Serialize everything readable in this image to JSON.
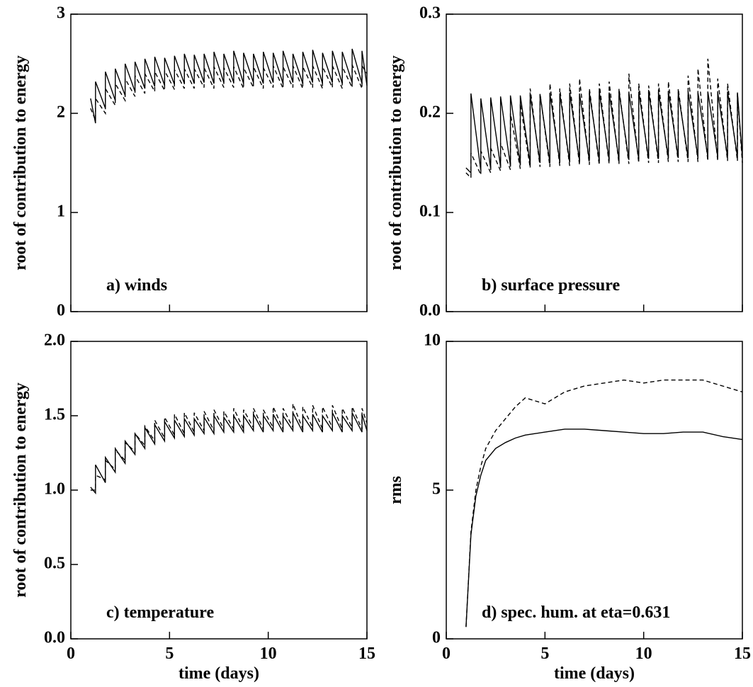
{
  "chart_data": [
    {
      "type": "line",
      "ylabel": "root of contribution to energy",
      "annotation": "a) winds",
      "xlim": [
        0,
        15
      ],
      "xticks": [
        0,
        5,
        10,
        15
      ],
      "show_xtick_labels": false,
      "ylim": [
        0,
        3
      ],
      "yticks": [
        0,
        1,
        2,
        3
      ],
      "x": [
        1,
        1.25,
        1.25,
        1.75,
        1.75,
        2.25,
        2.25,
        2.75,
        2.75,
        3.25,
        3.25,
        3.75,
        3.75,
        4.25,
        4.25,
        4.75,
        4.75,
        5.25,
        5.25,
        5.75,
        5.75,
        6.25,
        6.25,
        6.75,
        6.75,
        7.25,
        7.25,
        7.75,
        7.75,
        8.25,
        8.25,
        8.75,
        8.75,
        9.25,
        9.25,
        9.75,
        9.75,
        10.25,
        10.25,
        10.75,
        10.75,
        11.25,
        11.25,
        11.75,
        11.75,
        12.25,
        12.25,
        12.75,
        12.75,
        13.25,
        13.25,
        13.75,
        13.75,
        14.25,
        14.25,
        14.75,
        14.75,
        15
      ],
      "series": [
        {
          "color": "#000000",
          "line_style": "solid",
          "values": [
            2.15,
            1.9,
            2.32,
            2.05,
            2.42,
            2.13,
            2.45,
            2.18,
            2.5,
            2.22,
            2.52,
            2.25,
            2.55,
            2.27,
            2.57,
            2.28,
            2.56,
            2.29,
            2.58,
            2.3,
            2.6,
            2.3,
            2.59,
            2.31,
            2.6,
            2.3,
            2.62,
            2.31,
            2.6,
            2.31,
            2.63,
            2.3,
            2.61,
            2.31,
            2.6,
            2.3,
            2.62,
            2.31,
            2.61,
            2.3,
            2.63,
            2.31,
            2.6,
            2.3,
            2.62,
            2.31,
            2.64,
            2.3,
            2.61,
            2.31,
            2.63,
            2.3,
            2.62,
            2.31,
            2.65,
            2.3,
            2.63,
            2.28
          ]
        },
        {
          "color": "#000000",
          "line_style": "dashed",
          "values": [
            2.05,
            1.93,
            2.15,
            2.0,
            2.25,
            2.08,
            2.3,
            2.13,
            2.35,
            2.17,
            2.38,
            2.2,
            2.4,
            2.22,
            2.42,
            2.23,
            2.43,
            2.24,
            2.44,
            2.25,
            2.45,
            2.25,
            2.45,
            2.26,
            2.46,
            2.25,
            2.47,
            2.26,
            2.46,
            2.26,
            2.47,
            2.25,
            2.46,
            2.26,
            2.47,
            2.25,
            2.46,
            2.26,
            2.48,
            2.25,
            2.47,
            2.26,
            2.48,
            2.25,
            2.47,
            2.26,
            2.48,
            2.25,
            2.47,
            2.26,
            2.48,
            2.25,
            2.47,
            2.26,
            2.49,
            2.25,
            2.48,
            2.4
          ]
        }
      ]
    },
    {
      "type": "line",
      "ylabel": "root of contribution to energy",
      "annotation": "b) surface pressure",
      "xlim": [
        0,
        15
      ],
      "xticks": [
        0,
        5,
        10,
        15
      ],
      "show_xtick_labels": false,
      "ylim": [
        0,
        0.3
      ],
      "yticks": [
        {
          "value": 0,
          "label": "0.0"
        },
        0.1,
        0.2,
        0.3
      ],
      "x": [
        1,
        1.25,
        1.25,
        1.75,
        1.75,
        2.25,
        2.25,
        2.75,
        2.75,
        3.25,
        3.25,
        3.75,
        3.75,
        4.25,
        4.25,
        4.75,
        4.75,
        5.25,
        5.25,
        5.75,
        5.75,
        6.25,
        6.25,
        6.75,
        6.75,
        7.25,
        7.25,
        7.75,
        7.75,
        8.25,
        8.25,
        8.75,
        8.75,
        9.25,
        9.25,
        9.75,
        9.75,
        10.25,
        10.25,
        10.75,
        10.75,
        11.25,
        11.25,
        11.75,
        11.75,
        12.25,
        12.25,
        12.75,
        12.75,
        13.25,
        13.25,
        13.75,
        13.75,
        14.25,
        14.25,
        14.75,
        14.75,
        15
      ],
      "series": [
        {
          "color": "#000000",
          "line_style": "solid",
          "values": [
            0.145,
            0.14,
            0.22,
            0.142,
            0.215,
            0.144,
            0.216,
            0.146,
            0.217,
            0.147,
            0.218,
            0.148,
            0.218,
            0.149,
            0.219,
            0.15,
            0.219,
            0.15,
            0.22,
            0.151,
            0.22,
            0.151,
            0.221,
            0.152,
            0.22,
            0.152,
            0.221,
            0.152,
            0.222,
            0.153,
            0.221,
            0.153,
            0.222,
            0.153,
            0.221,
            0.154,
            0.222,
            0.154,
            0.222,
            0.154,
            0.221,
            0.155,
            0.222,
            0.155,
            0.221,
            0.155,
            0.222,
            0.155,
            0.221,
            0.156,
            0.222,
            0.156,
            0.221,
            0.156,
            0.222,
            0.156,
            0.221,
            0.155
          ]
        },
        {
          "color": "#000000",
          "line_style": "dashed",
          "values": [
            0.14,
            0.135,
            0.16,
            0.138,
            0.162,
            0.14,
            0.165,
            0.142,
            0.17,
            0.143,
            0.2,
            0.144,
            0.21,
            0.145,
            0.225,
            0.146,
            0.22,
            0.146,
            0.23,
            0.147,
            0.225,
            0.147,
            0.23,
            0.148,
            0.235,
            0.148,
            0.225,
            0.148,
            0.23,
            0.149,
            0.232,
            0.149,
            0.225,
            0.149,
            0.24,
            0.15,
            0.23,
            0.15,
            0.228,
            0.15,
            0.23,
            0.151,
            0.232,
            0.151,
            0.225,
            0.151,
            0.238,
            0.151,
            0.245,
            0.152,
            0.255,
            0.152,
            0.235,
            0.152,
            0.23,
            0.152,
            0.22,
            0.15
          ]
        }
      ]
    },
    {
      "type": "line",
      "ylabel": "root of contribution to energy",
      "annotation": "c) temperature",
      "xlabel": "time (days)",
      "xlim": [
        0,
        15
      ],
      "xticks": [
        0,
        5,
        10,
        15
      ],
      "show_xtick_labels": true,
      "ylim": [
        0,
        2
      ],
      "yticks": [
        {
          "value": 0,
          "label": "0.0"
        },
        0.5,
        {
          "value": 1,
          "label": "1.0"
        },
        1.5,
        {
          "value": 2,
          "label": "2.0"
        }
      ],
      "x": [
        1,
        1.25,
        1.25,
        1.75,
        1.75,
        2.25,
        2.25,
        2.75,
        2.75,
        3.25,
        3.25,
        3.75,
        3.75,
        4.25,
        4.25,
        4.75,
        4.75,
        5.25,
        5.25,
        5.75,
        5.75,
        6.25,
        6.25,
        6.75,
        6.75,
        7.25,
        7.25,
        7.75,
        7.75,
        8.25,
        8.25,
        8.75,
        8.75,
        9.25,
        9.25,
        9.75,
        9.75,
        10.25,
        10.25,
        10.75,
        10.75,
        11.25,
        11.25,
        11.75,
        11.75,
        12.25,
        12.25,
        12.75,
        12.75,
        13.25,
        13.25,
        13.75,
        13.75,
        14.25,
        14.25,
        14.75,
        14.75,
        15
      ],
      "series": [
        {
          "color": "#000000",
          "line_style": "solid",
          "values": [
            1.02,
            0.98,
            1.17,
            1.05,
            1.22,
            1.12,
            1.28,
            1.18,
            1.33,
            1.24,
            1.38,
            1.28,
            1.42,
            1.31,
            1.44,
            1.33,
            1.46,
            1.35,
            1.47,
            1.36,
            1.48,
            1.37,
            1.48,
            1.38,
            1.49,
            1.38,
            1.5,
            1.39,
            1.49,
            1.39,
            1.5,
            1.39,
            1.5,
            1.4,
            1.51,
            1.39,
            1.5,
            1.4,
            1.51,
            1.39,
            1.5,
            1.4,
            1.52,
            1.39,
            1.5,
            1.4,
            1.51,
            1.39,
            1.5,
            1.4,
            1.52,
            1.39,
            1.5,
            1.4,
            1.52,
            1.39,
            1.51,
            1.4
          ]
        },
        {
          "color": "#000000",
          "line_style": "dashed",
          "values": [
            1.0,
            1.0,
            1.1,
            1.07,
            1.2,
            1.14,
            1.27,
            1.2,
            1.32,
            1.26,
            1.38,
            1.3,
            1.43,
            1.33,
            1.47,
            1.35,
            1.49,
            1.37,
            1.51,
            1.38,
            1.52,
            1.39,
            1.52,
            1.4,
            1.53,
            1.4,
            1.54,
            1.41,
            1.53,
            1.41,
            1.55,
            1.41,
            1.54,
            1.42,
            1.55,
            1.41,
            1.54,
            1.42,
            1.56,
            1.41,
            1.55,
            1.42,
            1.58,
            1.41,
            1.56,
            1.42,
            1.57,
            1.41,
            1.56,
            1.42,
            1.57,
            1.41,
            1.55,
            1.42,
            1.56,
            1.41,
            1.55,
            1.45
          ]
        }
      ]
    },
    {
      "type": "line",
      "ylabel": "rms",
      "annotation": "d) spec. hum. at eta=0.631",
      "xlabel": "time (days)",
      "xlim": [
        0,
        15
      ],
      "xticks": [
        0,
        5,
        10,
        15
      ],
      "show_xtick_labels": true,
      "ylim": [
        0,
        10
      ],
      "yticks": [
        0,
        5,
        10
      ],
      "x": [
        1,
        1.25,
        1.5,
        1.75,
        2,
        2.5,
        3,
        3.5,
        4,
        4.5,
        5,
        6,
        7,
        8,
        9,
        10,
        11,
        12,
        13,
        14,
        15
      ],
      "series": [
        {
          "color": "#000000",
          "line_style": "solid",
          "values": [
            0.4,
            3.5,
            4.8,
            5.5,
            6.0,
            6.4,
            6.6,
            6.75,
            6.85,
            6.9,
            6.95,
            7.05,
            7.05,
            7.0,
            6.95,
            6.9,
            6.9,
            6.95,
            6.95,
            6.8,
            6.7
          ]
        },
        {
          "color": "#000000",
          "line_style": "dashed",
          "values": [
            0.4,
            3.6,
            5.0,
            5.8,
            6.4,
            7.0,
            7.4,
            7.8,
            8.1,
            8.0,
            7.9,
            8.3,
            8.5,
            8.6,
            8.7,
            8.6,
            8.7,
            8.7,
            8.7,
            8.5,
            8.3
          ]
        }
      ]
    }
  ]
}
